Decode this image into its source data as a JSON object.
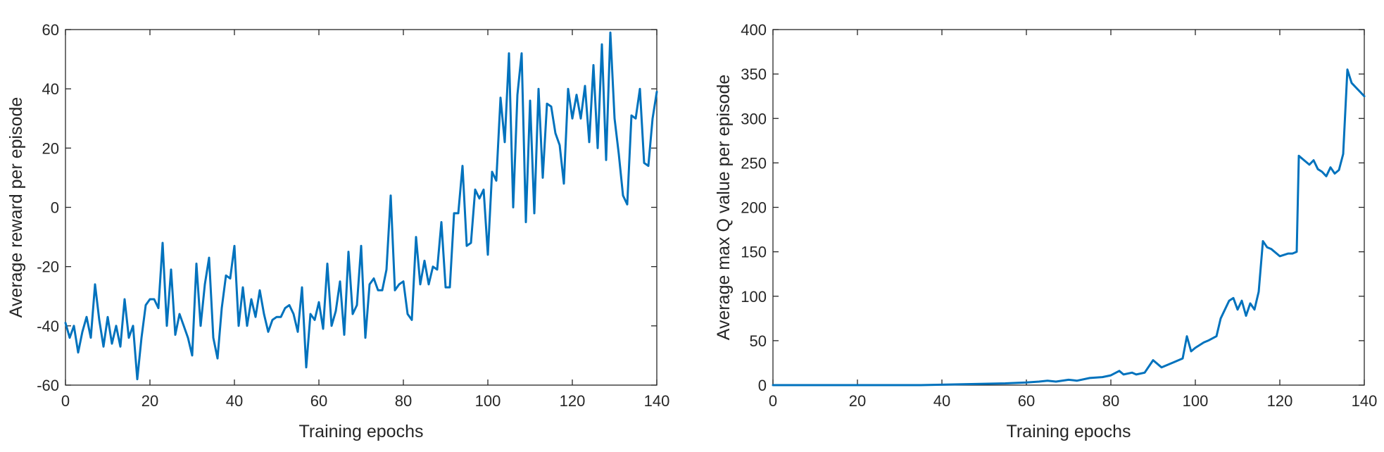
{
  "colors": {
    "series": "#0072BD",
    "axis": "#262626"
  },
  "chart_data": [
    {
      "type": "line",
      "xlabel": "Training epochs",
      "ylabel": "Average reward per episode",
      "xlim": [
        0,
        140
      ],
      "ylim": [
        -60,
        60
      ],
      "xticks": [
        0,
        20,
        40,
        60,
        80,
        100,
        120,
        140
      ],
      "yticks": [
        -60,
        -40,
        -20,
        0,
        20,
        40,
        60
      ],
      "grid": false,
      "series": [
        {
          "x": [
            0,
            1,
            2,
            3,
            4,
            5,
            6,
            7,
            8,
            9,
            10,
            11,
            12,
            13,
            14,
            15,
            16,
            17,
            18,
            19,
            20,
            21,
            22,
            23,
            24,
            25,
            26,
            27,
            28,
            29,
            30,
            31,
            32,
            33,
            34,
            35,
            36,
            37,
            38,
            39,
            40,
            41,
            42,
            43,
            44,
            45,
            46,
            47,
            48,
            49,
            50,
            51,
            52,
            53,
            54,
            55,
            56,
            57,
            58,
            59,
            60,
            61,
            62,
            63,
            64,
            65,
            66,
            67,
            68,
            69,
            70,
            71,
            72,
            73,
            74,
            75,
            76,
            77,
            78,
            79,
            80,
            81,
            82,
            83,
            84,
            85,
            86,
            87,
            88,
            89,
            90,
            91,
            92,
            93,
            94,
            95,
            96,
            97,
            98,
            99,
            100,
            101,
            102,
            103,
            104,
            105,
            106,
            107,
            108,
            109,
            110,
            111,
            112,
            113,
            114,
            115,
            116,
            117,
            118,
            119,
            120,
            121,
            122,
            123,
            124,
            125,
            126,
            127,
            128,
            129,
            130,
            131,
            132,
            133,
            134,
            135,
            136,
            137,
            138,
            139,
            140
          ],
          "y": [
            -39,
            -44,
            -40,
            -49,
            -42,
            -37,
            -44,
            -26,
            -38,
            -47,
            -37,
            -46,
            -40,
            -47,
            -31,
            -44,
            -40,
            -58,
            -44,
            -33,
            -31,
            -31,
            -34,
            -12,
            -40,
            -21,
            -43,
            -36,
            -40,
            -44,
            -50,
            -19,
            -40,
            -26,
            -17,
            -44,
            -51,
            -34,
            -23,
            -24,
            -13,
            -40,
            -27,
            -40,
            -31,
            -37,
            -28,
            -36,
            -42,
            -38,
            -37,
            -37,
            -34,
            -33,
            -36,
            -42,
            -27,
            -54,
            -36,
            -38,
            -32,
            -41,
            -19,
            -40,
            -35,
            -25,
            -43,
            -15,
            -36,
            -33,
            -13,
            -44,
            -26,
            -24,
            -28,
            -28,
            -21,
            4,
            -28,
            -26,
            -25,
            -36,
            -38,
            -10,
            -26,
            -18,
            -26,
            -20,
            -21,
            -5,
            -27,
            -27,
            -2,
            -2,
            14,
            -13,
            -12,
            6,
            3,
            6,
            -16,
            12,
            9,
            37,
            22,
            52,
            0,
            38,
            52,
            -5,
            36,
            -2,
            40,
            10,
            35,
            34,
            25,
            21,
            8,
            40,
            30,
            38,
            30,
            41,
            22,
            48,
            20,
            55,
            16,
            59,
            30,
            18,
            4,
            1,
            31,
            30,
            40,
            15,
            14,
            30,
            39
          ]
        }
      ]
    },
    {
      "type": "line",
      "xlabel": "Training epochs",
      "ylabel": "Average max Q value per episode",
      "xlim": [
        0,
        140
      ],
      "ylim": [
        0,
        400
      ],
      "xticks": [
        0,
        20,
        40,
        60,
        80,
        100,
        120,
        140
      ],
      "yticks": [
        0,
        50,
        100,
        150,
        200,
        250,
        300,
        350,
        400
      ],
      "grid": false,
      "series": [
        {
          "x": [
            0,
            5,
            10,
            15,
            20,
            25,
            30,
            35,
            40,
            45,
            50,
            55,
            60,
            63,
            65,
            67,
            70,
            72,
            75,
            78,
            80,
            82,
            83,
            85,
            86,
            88,
            90,
            92,
            95,
            97,
            98,
            99,
            100,
            102,
            103,
            105,
            106,
            108,
            109,
            110,
            111,
            112,
            113,
            114,
            115,
            116,
            117,
            118,
            120,
            122,
            123,
            124,
            124.5,
            126,
            127,
            128,
            129,
            130,
            131,
            132,
            133,
            134,
            135,
            136,
            137,
            138,
            139,
            140
          ],
          "y": [
            0,
            0,
            0,
            0,
            0,
            0,
            0,
            0,
            0.5,
            1,
            1.5,
            2,
            3,
            4,
            5,
            4,
            6,
            5,
            8,
            9,
            11,
            16,
            12,
            14,
            12,
            14,
            28,
            20,
            26,
            30,
            55,
            38,
            42,
            48,
            50,
            55,
            75,
            95,
            98,
            85,
            95,
            78,
            92,
            85,
            105,
            162,
            155,
            153,
            145,
            148,
            148,
            150,
            258,
            252,
            248,
            253,
            243,
            240,
            235,
            245,
            238,
            242,
            260,
            355,
            340,
            335,
            330,
            325
          ]
        }
      ]
    }
  ]
}
